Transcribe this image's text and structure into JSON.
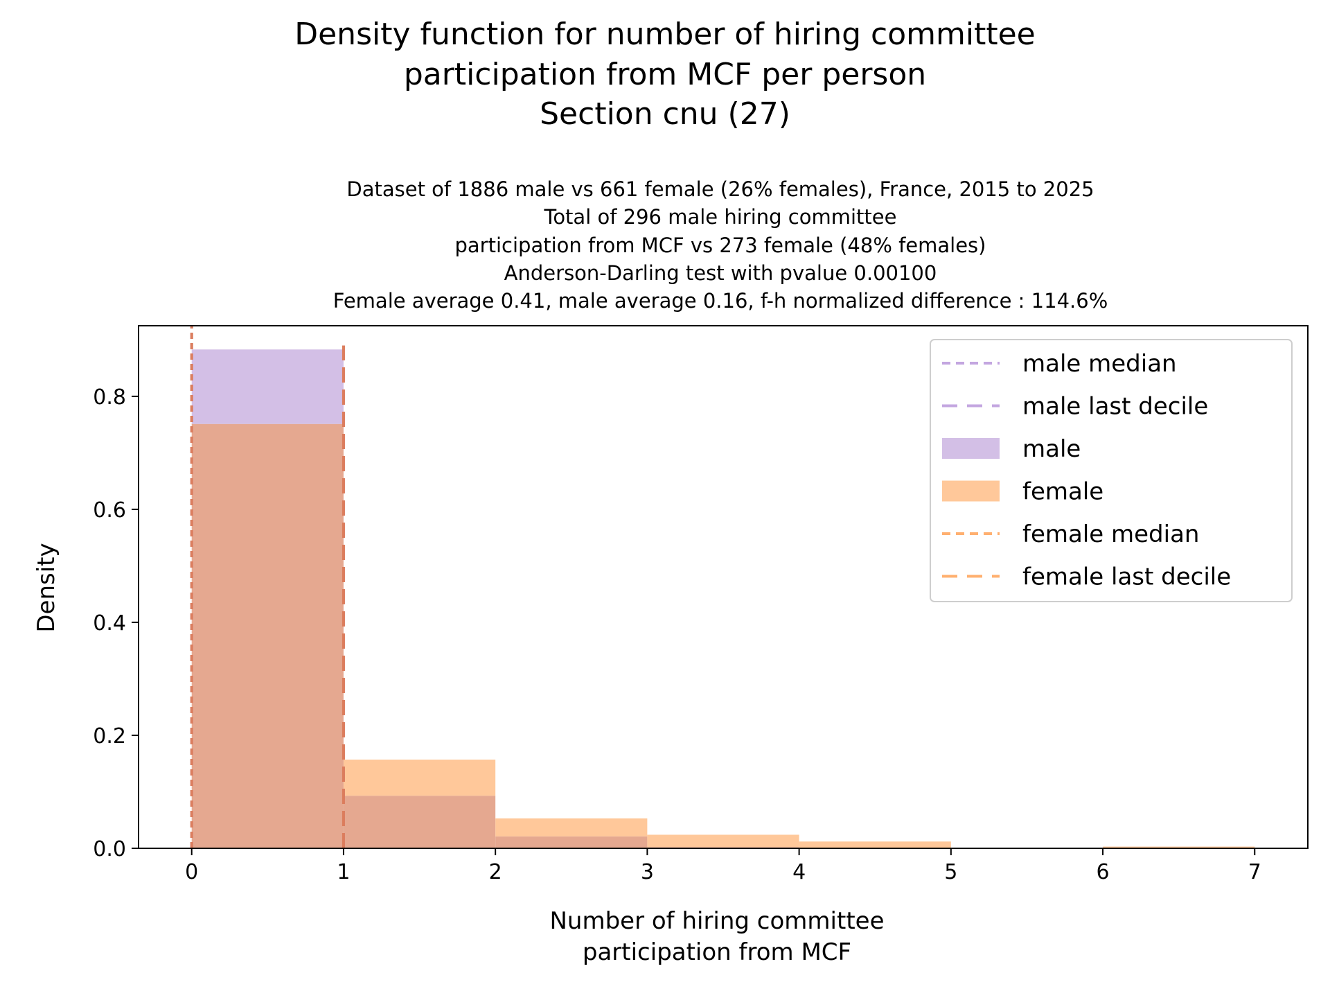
{
  "title_lines": [
    "Density function for number of hiring committee",
    "participation from MCF per person",
    "Section cnu (27)"
  ],
  "subtitle_lines": [
    "Dataset of 1886 male vs 661 female (26% females), France, 2015 to 2025",
    "Total of 296 male hiring committee",
    "participation from MCF vs 273 female (48% females)",
    "Anderson-Darling test with pvalue 0.00100",
    "Female average 0.41, male average 0.16, f-h normalized difference : 114.6%"
  ],
  "chart_data": {
    "type": "histogram",
    "xlabel_lines": [
      "Number of hiring committee",
      "participation from MCF"
    ],
    "ylabel": "Density",
    "xlim": [
      -0.35,
      7.35
    ],
    "ylim": [
      0,
      0.925
    ],
    "xticks": [
      0,
      1,
      2,
      3,
      4,
      5,
      6,
      7
    ],
    "xtick_labels": [
      "0",
      "1",
      "2",
      "3",
      "4",
      "5",
      "6",
      "7"
    ],
    "yticks": [
      0.0,
      0.2,
      0.4,
      0.6,
      0.8
    ],
    "ytick_labels": [
      "0.0",
      "0.2",
      "0.4",
      "0.6",
      "0.8"
    ],
    "bin_edges": [
      0,
      1,
      2,
      3,
      4,
      5,
      6,
      7
    ],
    "series": [
      {
        "name": "male",
        "color": "#d3bfe6",
        "values": [
          0.883,
          0.093,
          0.021,
          0.002,
          0.001,
          0.0,
          0.0
        ]
      },
      {
        "name": "female",
        "color": "#ffc89a",
        "values": [
          0.751,
          0.157,
          0.053,
          0.024,
          0.012,
          0.0,
          0.003
        ]
      }
    ],
    "overlap_color": "#e5a890",
    "lines": [
      {
        "name": "male median",
        "x": 0,
        "color": "#b99bd9",
        "style": "dashed-short"
      },
      {
        "name": "male last decile",
        "x": 1,
        "color": "#b99bd9",
        "style": "dashed-long"
      },
      {
        "name": "female median",
        "x": 0,
        "color": "#e07a50",
        "style": "dashed-short"
      },
      {
        "name": "female last decile",
        "x": 1,
        "color": "#e07a50",
        "style": "dashed-long"
      }
    ],
    "legend": {
      "position": "top-right",
      "entries": [
        {
          "label": "male median",
          "kind": "line-short",
          "color": "#c3a6e0"
        },
        {
          "label": "male last decile",
          "kind": "line-long",
          "color": "#c3a6e0"
        },
        {
          "label": "male",
          "kind": "patch",
          "color": "#d3bfe6"
        },
        {
          "label": "female",
          "kind": "patch",
          "color": "#ffc89a"
        },
        {
          "label": "female median",
          "kind": "line-short",
          "color": "#ffb070"
        },
        {
          "label": "female last decile",
          "kind": "line-long",
          "color": "#ffb070"
        }
      ]
    }
  }
}
